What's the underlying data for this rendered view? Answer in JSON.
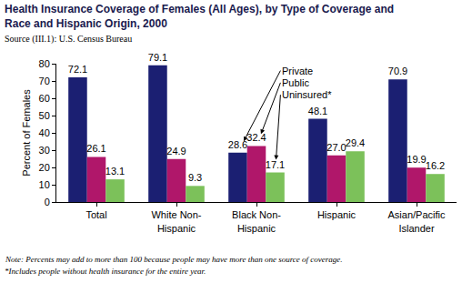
{
  "chart_data": {
    "type": "bar",
    "title": "Health Insurance Coverage of Females (All Ages), by Type of Coverage and Race and Hispanic Origin, 2000",
    "source": "Source (III.1): U.S. Census Bureau",
    "notes": [
      "Note: Percents may add to more than 100 because people may have more than one source of coverage.",
      "*Includes people without health insurance for the entire year."
    ],
    "ylabel": "Percent of Females",
    "categories": [
      "Total",
      "White Non-Hispanic",
      "Black Non-Hispanic",
      "Hispanic",
      "Asian/Pacific Islander"
    ],
    "series": [
      {
        "name": "Private",
        "color": "#1b1f72",
        "values": [
          72.1,
          79.1,
          28.6,
          48.1,
          70.9
        ],
        "value_labels": [
          "72.1",
          "79.1",
          "28.6",
          "48.1",
          "70.9"
        ]
      },
      {
        "name": "Public",
        "color": "#b0176a",
        "values": [
          26.1,
          24.9,
          32.4,
          27.0,
          19.9
        ],
        "value_labels": [
          "26.1",
          "24.9",
          "32.4",
          "27.0",
          "19.9"
        ]
      },
      {
        "name": "Uninsured*",
        "color": "#7cc15a",
        "values": [
          13.1,
          9.3,
          17.1,
          29.4,
          16.2
        ],
        "value_labels": [
          "13.1",
          "9.3",
          "17.1",
          "29.4",
          "16.2"
        ]
      }
    ],
    "ylim": [
      0,
      80
    ],
    "yticks": [
      0,
      10,
      20,
      30,
      40,
      50,
      60,
      70,
      80
    ],
    "data_labels": true,
    "grid": false
  }
}
